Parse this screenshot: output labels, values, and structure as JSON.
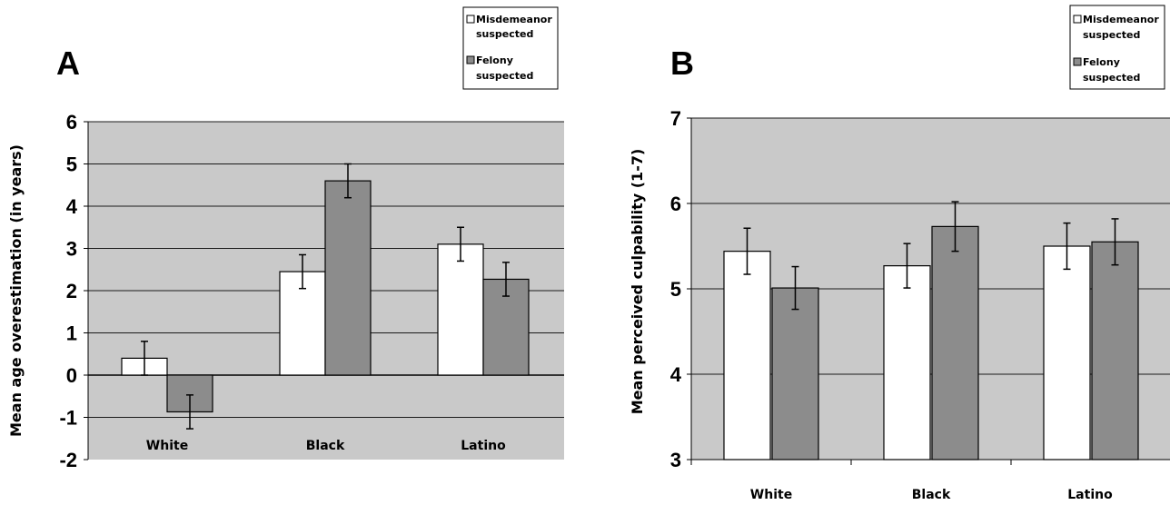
{
  "chart_data": [
    {
      "panel": "A",
      "type": "bar",
      "ylabel": "Mean age overestimation (in years)",
      "categories": [
        "White",
        "Black",
        "Latino"
      ],
      "ylim": [
        -2,
        6
      ],
      "yticks": [
        "6",
        "5",
        "4",
        "3",
        "2",
        "1",
        "0",
        "-1",
        "-2"
      ],
      "grid": true,
      "legend_position": "top-right",
      "series": [
        {
          "name": "Misdemeanor suspected",
          "color": "#ffffff",
          "values": [
            0.4,
            2.45,
            3.1
          ],
          "errors": [
            0.4,
            0.4,
            0.4
          ]
        },
        {
          "name": "Felony suspected",
          "color": "#8c8c8c",
          "values": [
            -0.87,
            4.6,
            2.27
          ],
          "errors": [
            0.4,
            0.4,
            0.4
          ]
        }
      ]
    },
    {
      "panel": "B",
      "type": "bar",
      "ylabel": "Mean perceived culpability (1-7)",
      "categories": [
        "White",
        "Black",
        "Latino"
      ],
      "ylim": [
        3,
        7
      ],
      "yticks": [
        "7",
        "6",
        "5",
        "4",
        "3"
      ],
      "grid": true,
      "legend_position": "top-right",
      "series": [
        {
          "name": "Misdemeanor suspected",
          "color": "#ffffff",
          "values": [
            5.44,
            5.27,
            5.5
          ],
          "errors": [
            0.27,
            0.26,
            0.27
          ]
        },
        {
          "name": "Felony suspected",
          "color": "#8c8c8c",
          "values": [
            5.01,
            5.73,
            5.55
          ],
          "errors": [
            0.25,
            0.29,
            0.27
          ]
        }
      ]
    }
  ],
  "legend": {
    "misdemeanor_line1": "Misdemeanor",
    "misdemeanor_line2": "suspected",
    "felony_line1": "Felony",
    "felony_line2": "suspected"
  }
}
